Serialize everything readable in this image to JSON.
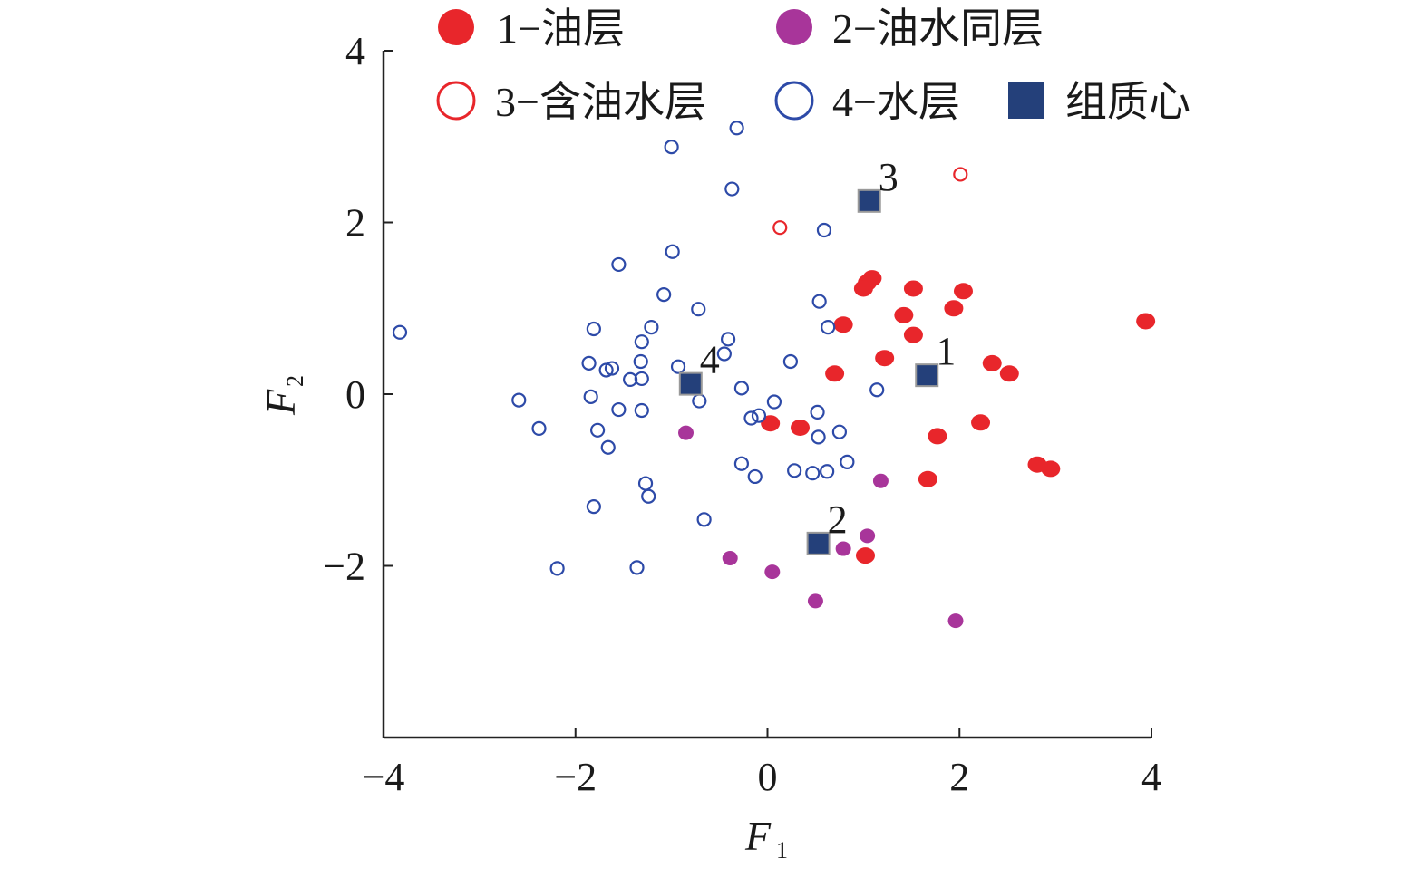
{
  "chart_data": {
    "type": "scatter",
    "title": "",
    "xlabel": "F",
    "xlabel_sub": "1",
    "ylabel": "F",
    "ylabel_sub": "2",
    "xlim": [
      -4,
      4
    ],
    "ylim": [
      -4,
      4
    ],
    "xticks": [
      -4,
      -2,
      0,
      2,
      4
    ],
    "yticks": [
      -2,
      0,
      2,
      4
    ],
    "xtick_labels": [
      "−4",
      "−2",
      "0",
      "2",
      "4"
    ],
    "ytick_labels": [
      "−2",
      "0",
      "2",
      "4"
    ],
    "legend_position": "top-right",
    "grid": false,
    "series": [
      {
        "name": "1−油层",
        "marker": "filled-circle",
        "color": "#e8262b",
        "points": [
          [
            1.04,
            1.3
          ],
          [
            1.09,
            1.35
          ],
          [
            1.0,
            1.23
          ],
          [
            1.52,
            1.23
          ],
          [
            2.04,
            1.2
          ],
          [
            1.94,
            1.0
          ],
          [
            1.42,
            0.92
          ],
          [
            0.79,
            0.81
          ],
          [
            1.52,
            0.69
          ],
          [
            3.94,
            0.85
          ],
          [
            1.22,
            0.42
          ],
          [
            2.34,
            0.36
          ],
          [
            2.52,
            0.24
          ],
          [
            0.7,
            0.24
          ],
          [
            0.03,
            -0.34
          ],
          [
            0.34,
            -0.39
          ],
          [
            2.22,
            -0.33
          ],
          [
            1.77,
            -0.49
          ],
          [
            2.81,
            -0.82
          ],
          [
            2.95,
            -0.87
          ],
          [
            1.67,
            -0.99
          ],
          [
            1.02,
            -1.88
          ]
        ]
      },
      {
        "name": "2−油水同层",
        "marker": "filled-circle",
        "color": "#a8359a",
        "points": [
          [
            -0.85,
            -0.45
          ],
          [
            1.18,
            -1.01
          ],
          [
            1.04,
            -1.65
          ],
          [
            0.79,
            -1.8
          ],
          [
            -0.39,
            -1.91
          ],
          [
            0.05,
            -2.07
          ],
          [
            0.5,
            -2.41
          ],
          [
            1.96,
            -2.64
          ]
        ]
      },
      {
        "name": "3−含油水层",
        "marker": "hollow-circle",
        "color": "#e8262b",
        "points": [
          [
            0.13,
            1.94
          ],
          [
            2.01,
            2.56
          ]
        ]
      },
      {
        "name": "4−水层",
        "marker": "hollow-circle",
        "color": "#2d4aa8",
        "points": [
          [
            -3.83,
            0.72
          ],
          [
            -1.0,
            2.88
          ],
          [
            -0.32,
            3.1
          ],
          [
            -0.37,
            2.39
          ],
          [
            -0.99,
            1.66
          ],
          [
            -1.55,
            1.51
          ],
          [
            -1.08,
            1.16
          ],
          [
            -0.72,
            0.99
          ],
          [
            0.59,
            1.91
          ],
          [
            0.54,
            1.08
          ],
          [
            0.63,
            0.78
          ],
          [
            -1.81,
            0.76
          ],
          [
            -1.21,
            0.78
          ],
          [
            -1.31,
            0.61
          ],
          [
            -0.41,
            0.64
          ],
          [
            -0.45,
            0.47
          ],
          [
            -1.86,
            0.36
          ],
          [
            -1.68,
            0.28
          ],
          [
            -1.62,
            0.3
          ],
          [
            -1.32,
            0.38
          ],
          [
            -1.43,
            0.17
          ],
          [
            -1.31,
            0.18
          ],
          [
            -0.93,
            0.32
          ],
          [
            0.24,
            0.38
          ],
          [
            -0.27,
            0.07
          ],
          [
            1.14,
            0.05
          ],
          [
            -2.59,
            -0.07
          ],
          [
            -1.84,
            -0.03
          ],
          [
            -0.71,
            -0.08
          ],
          [
            0.07,
            -0.09
          ],
          [
            -1.55,
            -0.18
          ],
          [
            -1.31,
            -0.19
          ],
          [
            -0.09,
            -0.25
          ],
          [
            -0.17,
            -0.28
          ],
          [
            0.52,
            -0.21
          ],
          [
            -2.38,
            -0.4
          ],
          [
            -1.77,
            -0.42
          ],
          [
            0.75,
            -0.44
          ],
          [
            0.53,
            -0.5
          ],
          [
            -1.66,
            -0.62
          ],
          [
            -0.27,
            -0.81
          ],
          [
            0.83,
            -0.79
          ],
          [
            0.28,
            -0.89
          ],
          [
            0.47,
            -0.92
          ],
          [
            0.62,
            -0.9
          ],
          [
            -0.13,
            -0.96
          ],
          [
            -1.27,
            -1.04
          ],
          [
            -1.24,
            -1.19
          ],
          [
            -1.81,
            -1.31
          ],
          [
            -0.66,
            -1.46
          ],
          [
            -2.19,
            -2.03
          ],
          [
            -1.36,
            -2.02
          ]
        ]
      },
      {
        "name": "组质心",
        "marker": "filled-square",
        "color": "#24407a",
        "points": [
          [
            1.66,
            0.22
          ],
          [
            0.53,
            -1.74
          ],
          [
            1.06,
            2.25
          ],
          [
            -0.8,
            0.12
          ]
        ],
        "labels": [
          "1",
          "2",
          "3",
          "4"
        ]
      }
    ]
  }
}
